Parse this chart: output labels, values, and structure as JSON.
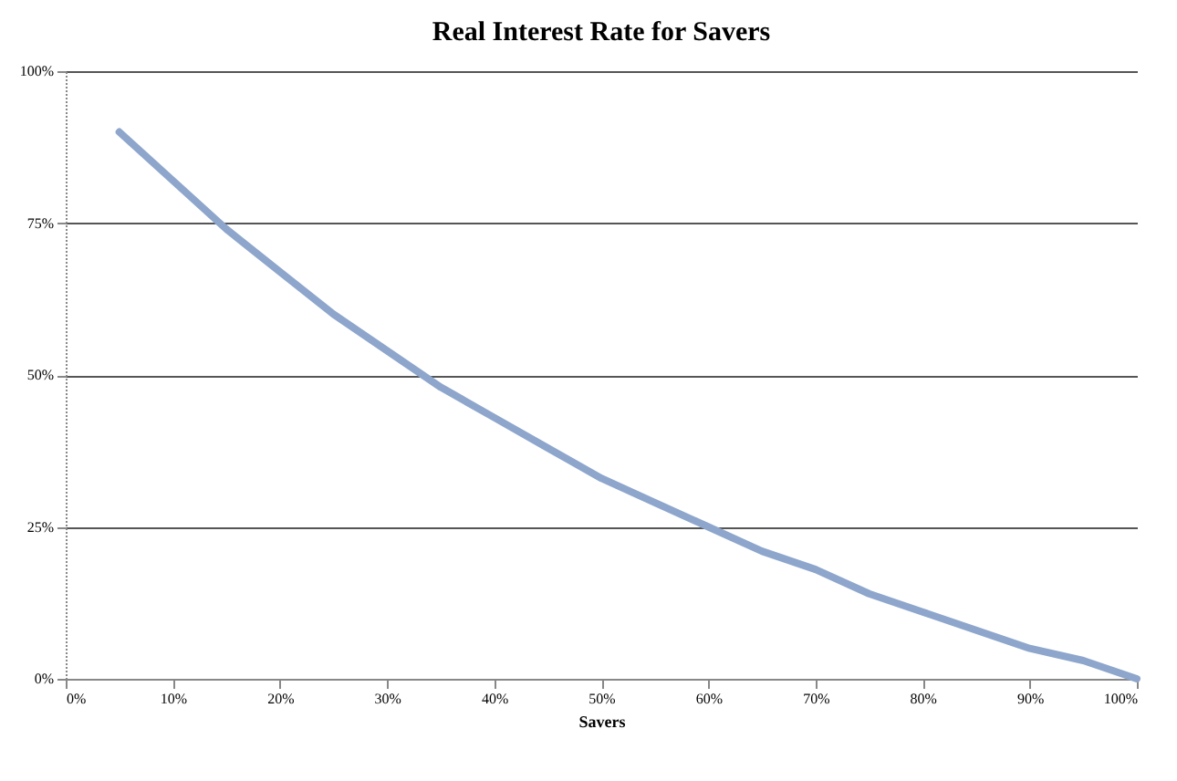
{
  "chart_data": {
    "type": "line",
    "title": "Real Interest Rate for Savers",
    "xlabel": "Savers",
    "x": [
      5,
      10,
      15,
      20,
      25,
      30,
      35,
      40,
      45,
      50,
      55,
      60,
      65,
      70,
      75,
      80,
      85,
      90,
      95,
      100
    ],
    "series": [
      {
        "color": "#8ea6cc",
        "values": [
          90,
          82,
          74,
          67,
          60,
          54,
          48,
          43,
          38,
          33,
          29,
          25,
          21,
          18,
          14,
          11,
          8,
          5,
          3,
          0
        ]
      }
    ],
    "xlim": [
      0,
      100
    ],
    "xticks": [
      {
        "value": 0,
        "label": "0%"
      },
      {
        "value": 10,
        "label": "10%"
      },
      {
        "value": 20,
        "label": "20%"
      },
      {
        "value": 30,
        "label": "30%"
      },
      {
        "value": 40,
        "label": "40%"
      },
      {
        "value": 50,
        "label": "50%"
      },
      {
        "value": 60,
        "label": "60%"
      },
      {
        "value": 70,
        "label": "70%"
      },
      {
        "value": 80,
        "label": "80%"
      },
      {
        "value": 90,
        "label": "90%"
      },
      {
        "value": 100,
        "label": "100%"
      }
    ],
    "ylim": [
      0,
      100
    ],
    "yticks": [
      {
        "value": 0,
        "label": "0%"
      },
      {
        "value": 25,
        "label": "25%"
      },
      {
        "value": 50,
        "label": "50%"
      },
      {
        "value": 75,
        "label": "75%"
      },
      {
        "value": 100,
        "label": "100%"
      }
    ],
    "grid": "y",
    "marker": "none",
    "line_style": "solid"
  }
}
